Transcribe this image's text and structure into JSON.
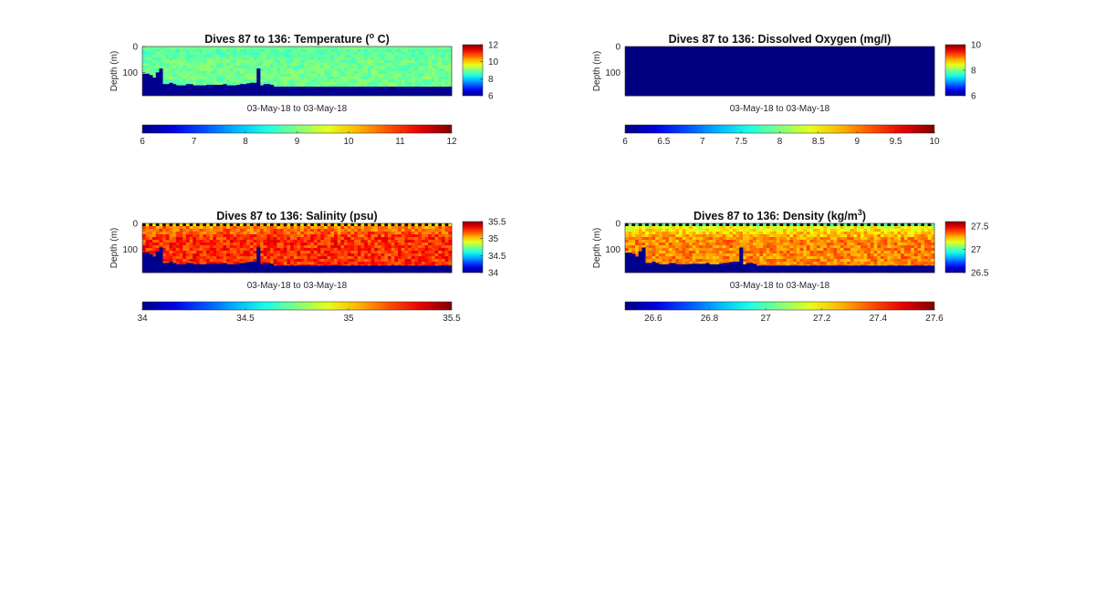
{
  "figure_type": "glider section plots (depth vs. dive, colour-coded)",
  "colormap": "jet",
  "chart_data": [
    {
      "type": "heatmap",
      "title_main": "Dives 87 to 136: Temperature (",
      "title_sup": "o",
      "title_end": " C)",
      "ylabel": "Depth (m)",
      "ytick_labels": [
        "0",
        "100"
      ],
      "ytick_values": [
        0,
        100
      ],
      "ylim": [
        0,
        190
      ],
      "xlabel": "03-May-18 to 03-May-18",
      "dive_range": [
        87,
        136
      ],
      "clim": [
        6,
        12
      ],
      "side_colorbar_ticks": [
        "12",
        "10",
        "8",
        "6"
      ],
      "side_colorbar_values": [
        12,
        10,
        8,
        6
      ],
      "bottom_colorbar_ticks": [
        "6",
        "7",
        "8",
        "9",
        "10",
        "11",
        "12"
      ],
      "bottom_colorbar_values": [
        6,
        7,
        8,
        9,
        10,
        11,
        12
      ],
      "field": {
        "base": 8.9,
        "near_surface": 8.7,
        "variation": 0.25,
        "surface_band": 8.9
      },
      "profile_max_depth_m": [
        105,
        105,
        110,
        120,
        100,
        85,
        145,
        145,
        140,
        145,
        150,
        150,
        150,
        145,
        145,
        150,
        150,
        150,
        150,
        148,
        148,
        148,
        148,
        148,
        145,
        150,
        150,
        150,
        148,
        145,
        145,
        142,
        140,
        140,
        85,
        150,
        145,
        145,
        148,
        155,
        155,
        155,
        155,
        155,
        155,
        155,
        155,
        155,
        155,
        155,
        155,
        155,
        155,
        155,
        155,
        155,
        155,
        155,
        155,
        155,
        155,
        155,
        155,
        155,
        155,
        155,
        155,
        155,
        155,
        155,
        155,
        155,
        155,
        155,
        155,
        155,
        155,
        155,
        155,
        155,
        155,
        155,
        155,
        155,
        155,
        155,
        155,
        155,
        155,
        155
      ],
      "floor_override": "temperature"
    },
    {
      "type": "heatmap",
      "title_main": "Dives 87 to 136: Dissolved Oxygen (mg/l)",
      "title_sup": "",
      "title_end": "",
      "ylabel": "Depth (m)",
      "ytick_labels": [
        "0",
        "100"
      ],
      "ytick_values": [
        0,
        100
      ],
      "ylim": [
        0,
        190
      ],
      "xlabel": "03-May-18 to 03-May-18",
      "dive_range": [
        87,
        136
      ],
      "clim": [
        6,
        10
      ],
      "side_colorbar_ticks": [
        "10",
        "8",
        "6"
      ],
      "side_colorbar_values": [
        10,
        8,
        6
      ],
      "bottom_colorbar_ticks": [
        "6",
        "6.5",
        "7",
        "7.5",
        "8",
        "8.5",
        "9",
        "9.5",
        "10"
      ],
      "bottom_colorbar_values": [
        6,
        6.5,
        7,
        7.5,
        8,
        8.5,
        9,
        9.5,
        10
      ],
      "field": {
        "uniform": 6
      },
      "floor_override": "none"
    },
    {
      "type": "heatmap",
      "title_main": "Dives 87 to 136: Salinity (psu)",
      "title_sup": "",
      "title_end": "",
      "ylabel": "Depth (m)",
      "ytick_labels": [
        "0",
        "100"
      ],
      "ytick_values": [
        0,
        100
      ],
      "ylim": [
        0,
        190
      ],
      "xlabel": "03-May-18 to 03-May-18",
      "dive_range": [
        87,
        136
      ],
      "clim": [
        34,
        35.5
      ],
      "side_colorbar_ticks": [
        "35.5",
        "35",
        "34.5",
        "34"
      ],
      "side_colorbar_values": [
        35.5,
        35,
        34.5,
        34
      ],
      "bottom_colorbar_ticks": [
        "34",
        "34.5",
        "35",
        "35.5"
      ],
      "bottom_colorbar_values": [
        34,
        34.5,
        35,
        35.5
      ],
      "field": {
        "base": 35.25,
        "near_surface": 35.1,
        "variation": 0.12,
        "surface_band": 35.0
      },
      "floor_override": "salinity"
    },
    {
      "type": "heatmap",
      "title_main": "Dives 87 to 136: Density (kg/m",
      "title_sup": "3",
      "title_end": ")",
      "ylabel": "Depth (m)",
      "ytick_labels": [
        "0",
        "100"
      ],
      "ytick_values": [
        0,
        100
      ],
      "ylim": [
        0,
        190
      ],
      "xlabel": "03-May-18 to 03-May-18",
      "dive_range": [
        87,
        136
      ],
      "clim": [
        26.5,
        27.6
      ],
      "side_colorbar_ticks": [
        "27.5",
        "27",
        "26.5"
      ],
      "side_colorbar_values": [
        27.5,
        27,
        26.5
      ],
      "bottom_colorbar_ticks": [
        "26.6",
        "26.8",
        "27",
        "27.2",
        "27.4",
        "27.6"
      ],
      "bottom_colorbar_values": [
        26.6,
        26.8,
        27,
        27.2,
        27.4,
        27.6
      ],
      "field": {
        "base": 27.32,
        "near_surface": 27.15,
        "variation": 0.08,
        "surface_band": 27.0
      },
      "floor_override": "salinity"
    }
  ]
}
